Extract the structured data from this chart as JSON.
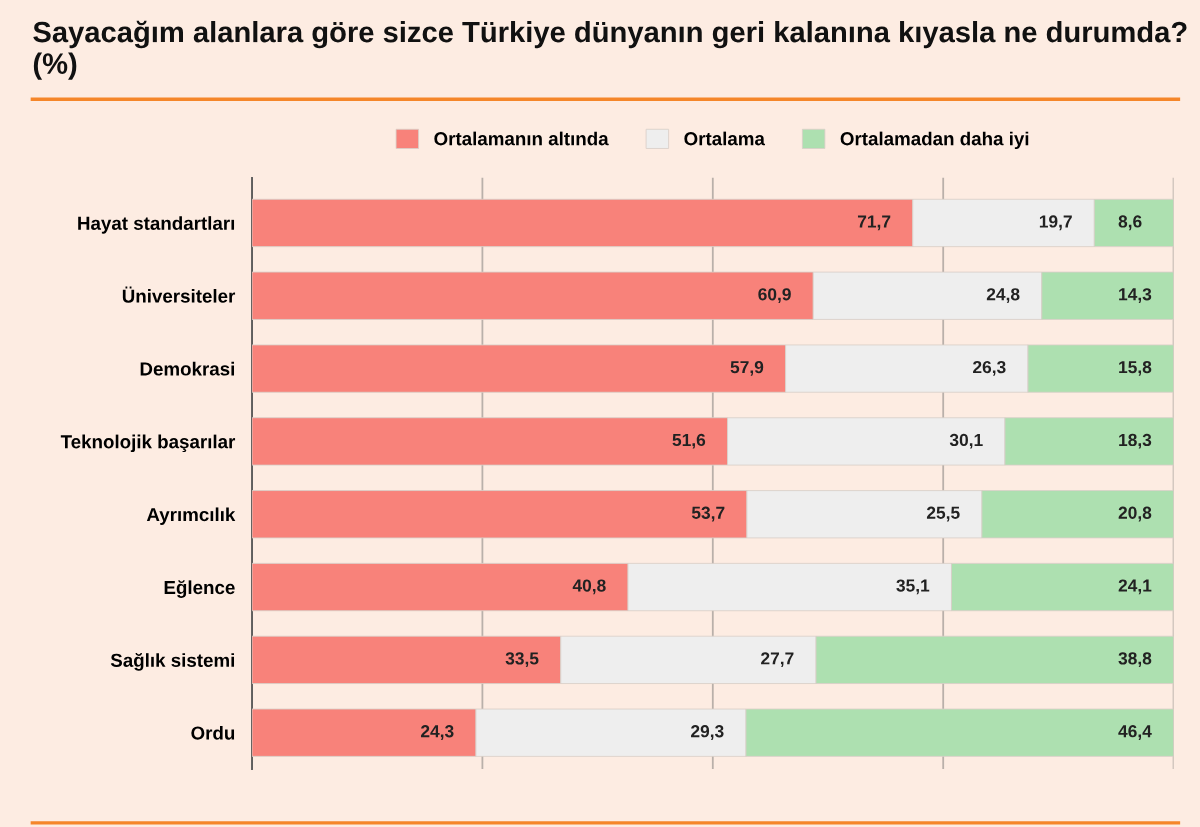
{
  "chart_data": {
    "type": "bar",
    "orientation": "horizontal",
    "stacked": true,
    "title": "Sayacağım alanlara göre sizce Türkiye dünyanın geri kalanına kıyasla ne durumda? (%)",
    "categories": [
      "Hayat standartları",
      "Üniversiteler",
      "Demokrasi",
      "Teknolojik başarılar",
      "Ayrımcılık",
      "Eğlence",
      "Sağlık sistemi",
      "Ordu"
    ],
    "series": [
      {
        "name": "Ortalamanın altında",
        "color": "#f8827a",
        "values": [
          71.7,
          60.9,
          57.9,
          51.6,
          53.7,
          40.8,
          33.5,
          24.3
        ],
        "value_labels": [
          "71,7",
          "60,9",
          "57,9",
          "51,6",
          "53,7",
          "40,8",
          "33,5",
          "24,3"
        ]
      },
      {
        "name": "Ortalama",
        "color": "#eeeeee",
        "values": [
          19.7,
          24.8,
          26.3,
          30.1,
          25.5,
          35.1,
          27.7,
          29.3
        ],
        "value_labels": [
          "19,7",
          "24,8",
          "26,3",
          "30,1",
          "25,5",
          "35,1",
          "27,7",
          "29,3"
        ]
      },
      {
        "name": "Ortalamadan daha iyi",
        "color": "#ade0b0",
        "values": [
          8.6,
          14.3,
          15.8,
          18.3,
          20.8,
          24.1,
          38.8,
          46.4
        ],
        "value_labels": [
          "8,6",
          "14,3",
          "15,8",
          "18,3",
          "20,8",
          "24,1",
          "38,8",
          "46,4"
        ]
      }
    ],
    "xlim": [
      0,
      100
    ],
    "xticks": [
      {
        "value": 0,
        "label": null
      },
      {
        "value": 25,
        "label": null
      },
      {
        "value": 50,
        "label": null
      },
      {
        "value": 75,
        "label": null
      },
      {
        "value": 100,
        "label": null
      }
    ],
    "tick_labels": "y",
    "grid": "x",
    "legend": "top"
  }
}
